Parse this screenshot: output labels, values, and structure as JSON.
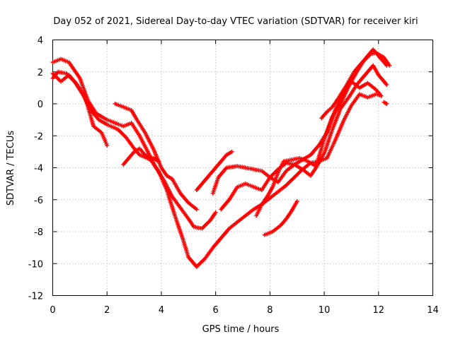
{
  "chart_data": {
    "type": "scatter",
    "title": "Day 052 of 2021, Sidereal Day-to-day VTEC variation (SDTVAR) for receiver kiri",
    "xlabel": "GPS time / hours",
    "ylabel": "SDTVAR / TECUs",
    "xlim": [
      0,
      14
    ],
    "ylim": [
      -12,
      4
    ],
    "xticks": [
      0,
      2,
      4,
      6,
      8,
      10,
      12,
      14
    ],
    "yticks": [
      -12,
      -10,
      -8,
      -6,
      -4,
      -2,
      0,
      2,
      4
    ],
    "grid": true,
    "marker": "plus",
    "color": "#ff0000",
    "series": [
      {
        "values": [
          [
            0.0,
            2.6
          ],
          [
            0.3,
            2.8
          ],
          [
            0.6,
            2.6
          ],
          [
            1.0,
            1.6
          ],
          [
            1.3,
            0.2
          ],
          [
            1.6,
            -0.6
          ],
          [
            2.0,
            -1.0
          ],
          [
            2.3,
            -1.2
          ],
          [
            2.6,
            -1.4
          ],
          [
            2.9,
            -1.2
          ],
          [
            3.2,
            -2.0
          ],
          [
            3.5,
            -3.0
          ],
          [
            3.8,
            -4.0
          ],
          [
            4.1,
            -4.8
          ],
          [
            4.4,
            -5.8
          ],
          [
            4.7,
            -6.5
          ],
          [
            5.0,
            -7.2
          ],
          [
            5.2,
            -7.7
          ],
          [
            5.5,
            -7.8
          ],
          [
            5.8,
            -7.3
          ],
          [
            6.0,
            -6.8
          ]
        ]
      },
      {
        "values": [
          [
            0.0,
            1.6
          ],
          [
            0.2,
            2.0
          ],
          [
            0.5,
            1.9
          ],
          [
            0.8,
            1.4
          ],
          [
            1.1,
            0.6
          ],
          [
            1.4,
            -0.4
          ],
          [
            1.7,
            -1.0
          ],
          [
            2.0,
            -1.3
          ],
          [
            2.4,
            -1.6
          ],
          [
            2.7,
            -2.1
          ],
          [
            3.0,
            -2.8
          ],
          [
            3.2,
            -3.2
          ],
          [
            3.6,
            -3.5
          ],
          [
            3.9,
            -4.2
          ],
          [
            4.2,
            -5.4
          ],
          [
            4.5,
            -7.0
          ],
          [
            4.8,
            -8.5
          ],
          [
            5.0,
            -9.6
          ],
          [
            5.3,
            -10.2
          ],
          [
            5.6,
            -9.7
          ],
          [
            5.9,
            -9.0
          ],
          [
            6.2,
            -8.4
          ],
          [
            6.5,
            -7.8
          ],
          [
            6.8,
            -7.4
          ],
          [
            7.1,
            -7.0
          ],
          [
            7.4,
            -6.6
          ],
          [
            7.7,
            -6.3
          ],
          [
            8.0,
            -5.9
          ],
          [
            8.3,
            -5.5
          ],
          [
            8.6,
            -5.1
          ],
          [
            8.9,
            -4.6
          ],
          [
            9.2,
            -4.1
          ],
          [
            9.5,
            -3.7
          ],
          [
            9.8,
            -3.6
          ],
          [
            10.1,
            -3.4
          ],
          [
            10.4,
            -2.3
          ],
          [
            10.7,
            -1.1
          ],
          [
            11.0,
            -0.1
          ],
          [
            11.3,
            0.6
          ],
          [
            11.6,
            0.4
          ],
          [
            11.9,
            0.6
          ],
          [
            12.1,
            0.5
          ]
        ]
      },
      {
        "values": [
          [
            0.0,
            1.9
          ],
          [
            0.3,
            1.4
          ],
          [
            0.6,
            1.8
          ],
          [
            0.9,
            1.2
          ],
          [
            1.2,
            0.4
          ],
          [
            1.5,
            -1.4
          ],
          [
            1.8,
            -1.8
          ],
          [
            2.0,
            -2.6
          ]
        ]
      },
      {
        "values": [
          [
            2.3,
            0.0
          ],
          [
            2.6,
            -0.2
          ],
          [
            2.9,
            -0.4
          ],
          [
            3.1,
            -1.0
          ],
          [
            3.4,
            -1.8
          ],
          [
            3.7,
            -2.8
          ],
          [
            4.0,
            -4.0
          ],
          [
            4.2,
            -4.5
          ],
          [
            4.4,
            -4.7
          ],
          [
            4.7,
            -5.6
          ],
          [
            5.0,
            -6.2
          ],
          [
            5.3,
            -6.6
          ]
        ]
      },
      {
        "values": [
          [
            2.6,
            -3.8
          ],
          [
            2.8,
            -3.4
          ],
          [
            3.0,
            -3.0
          ],
          [
            3.2,
            -2.8
          ],
          [
            3.4,
            -3.2
          ],
          [
            3.7,
            -3.4
          ],
          [
            3.9,
            -3.6
          ]
        ]
      },
      {
        "values": [
          [
            5.3,
            -5.4
          ],
          [
            5.6,
            -4.8
          ],
          [
            5.9,
            -4.2
          ],
          [
            6.2,
            -3.6
          ],
          [
            6.4,
            -3.2
          ],
          [
            6.6,
            -3.0
          ]
        ]
      },
      {
        "values": [
          [
            5.9,
            -5.6
          ],
          [
            6.1,
            -4.6
          ],
          [
            6.4,
            -4.0
          ],
          [
            6.8,
            -3.9
          ],
          [
            7.1,
            -4.0
          ],
          [
            7.4,
            -4.1
          ],
          [
            7.7,
            -4.2
          ],
          [
            8.0,
            -4.6
          ],
          [
            8.3,
            -4.9
          ],
          [
            8.6,
            -4.2
          ],
          [
            8.9,
            -3.8
          ],
          [
            9.2,
            -3.5
          ],
          [
            9.5,
            -3.2
          ],
          [
            9.8,
            -2.6
          ],
          [
            10.1,
            -1.8
          ],
          [
            10.4,
            -0.4
          ],
          [
            10.7,
            0.6
          ],
          [
            11.0,
            1.4
          ],
          [
            11.3,
            1.0
          ],
          [
            11.6,
            1.3
          ],
          [
            11.9,
            0.9
          ],
          [
            12.1,
            0.5
          ]
        ]
      },
      {
        "values": [
          [
            6.2,
            -6.6
          ],
          [
            6.5,
            -6.0
          ],
          [
            6.8,
            -5.2
          ],
          [
            7.1,
            -5.0
          ],
          [
            7.4,
            -5.2
          ],
          [
            7.7,
            -5.4
          ],
          [
            8.0,
            -4.6
          ],
          [
            8.3,
            -4.1
          ],
          [
            8.6,
            -3.7
          ],
          [
            8.9,
            -3.8
          ],
          [
            9.2,
            -4.1
          ],
          [
            9.5,
            -4.5
          ],
          [
            9.7,
            -4.0
          ],
          [
            10.0,
            -3.1
          ],
          [
            10.3,
            -1.6
          ],
          [
            10.6,
            -0.3
          ],
          [
            10.9,
            0.4
          ],
          [
            11.2,
            1.2
          ],
          [
            11.5,
            1.8
          ],
          [
            11.8,
            2.4
          ],
          [
            12.0,
            1.8
          ],
          [
            12.3,
            1.2
          ]
        ]
      },
      {
        "values": [
          [
            7.5,
            -7.0
          ],
          [
            7.7,
            -6.3
          ],
          [
            7.9,
            -5.8
          ],
          [
            8.1,
            -5.2
          ],
          [
            8.3,
            -4.3
          ],
          [
            8.5,
            -3.6
          ],
          [
            8.8,
            -3.5
          ],
          [
            9.1,
            -3.4
          ],
          [
            9.4,
            -3.6
          ],
          [
            9.7,
            -3.9
          ],
          [
            10.0,
            -2.2
          ],
          [
            10.3,
            -0.8
          ],
          [
            10.6,
            0.0
          ],
          [
            10.9,
            1.1
          ],
          [
            11.2,
            2.0
          ],
          [
            11.5,
            2.8
          ],
          [
            11.8,
            3.4
          ],
          [
            12.1,
            2.8
          ],
          [
            12.3,
            2.4
          ]
        ]
      },
      {
        "values": [
          [
            7.8,
            -8.2
          ],
          [
            8.1,
            -8.0
          ],
          [
            8.4,
            -7.6
          ],
          [
            8.6,
            -7.2
          ],
          [
            8.8,
            -6.7
          ],
          [
            9.0,
            -6.1
          ]
        ]
      },
      {
        "values": [
          [
            9.9,
            -0.9
          ],
          [
            10.1,
            -0.5
          ],
          [
            10.3,
            -0.2
          ],
          [
            10.5,
            0.3
          ],
          [
            10.8,
            1.1
          ],
          [
            11.1,
            2.0
          ],
          [
            11.4,
            2.6
          ],
          [
            11.7,
            3.1
          ],
          [
            11.9,
            3.2
          ],
          [
            12.2,
            2.9
          ],
          [
            12.4,
            2.4
          ]
        ]
      },
      {
        "values": [
          [
            12.2,
            0.1
          ],
          [
            12.3,
            0.0
          ]
        ]
      }
    ]
  }
}
